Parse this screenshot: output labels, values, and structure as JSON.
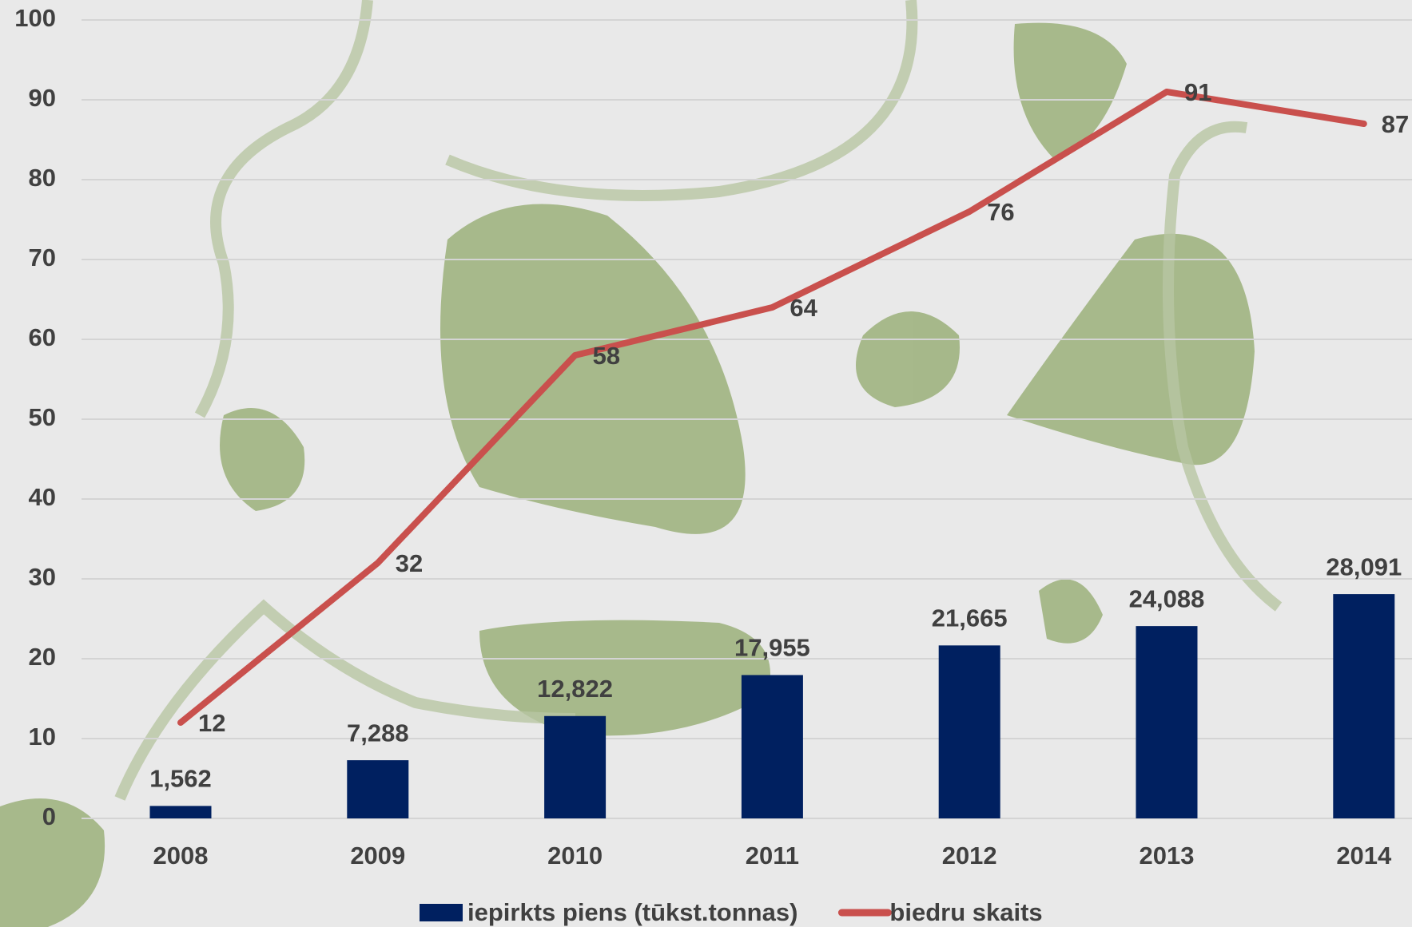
{
  "chart_data": {
    "type": "bar",
    "categories": [
      "2008",
      "2009",
      "2010",
      "2011",
      "2012",
      "2013",
      "2014"
    ],
    "series": [
      {
        "name": "iepirkts piens (tūkst.tonnas)",
        "type": "bar",
        "color": "#002060",
        "values": [
          1.562,
          7.288,
          12.822,
          17.955,
          21.665,
          24.088,
          28.091
        ],
        "value_labels": [
          "1,562",
          "7,288",
          "12,822",
          "17,955",
          "21,665",
          "24,088",
          "28,091"
        ]
      },
      {
        "name": "biedru skaits",
        "type": "line",
        "color": "#c9504d",
        "values": [
          12,
          32,
          58,
          64,
          76,
          91,
          87
        ]
      }
    ],
    "ylim": [
      0,
      100
    ],
    "yticks": [
      0,
      10,
      20,
      30,
      40,
      50,
      60,
      70,
      80,
      90,
      100
    ],
    "grid": true,
    "legend": "bottom"
  }
}
